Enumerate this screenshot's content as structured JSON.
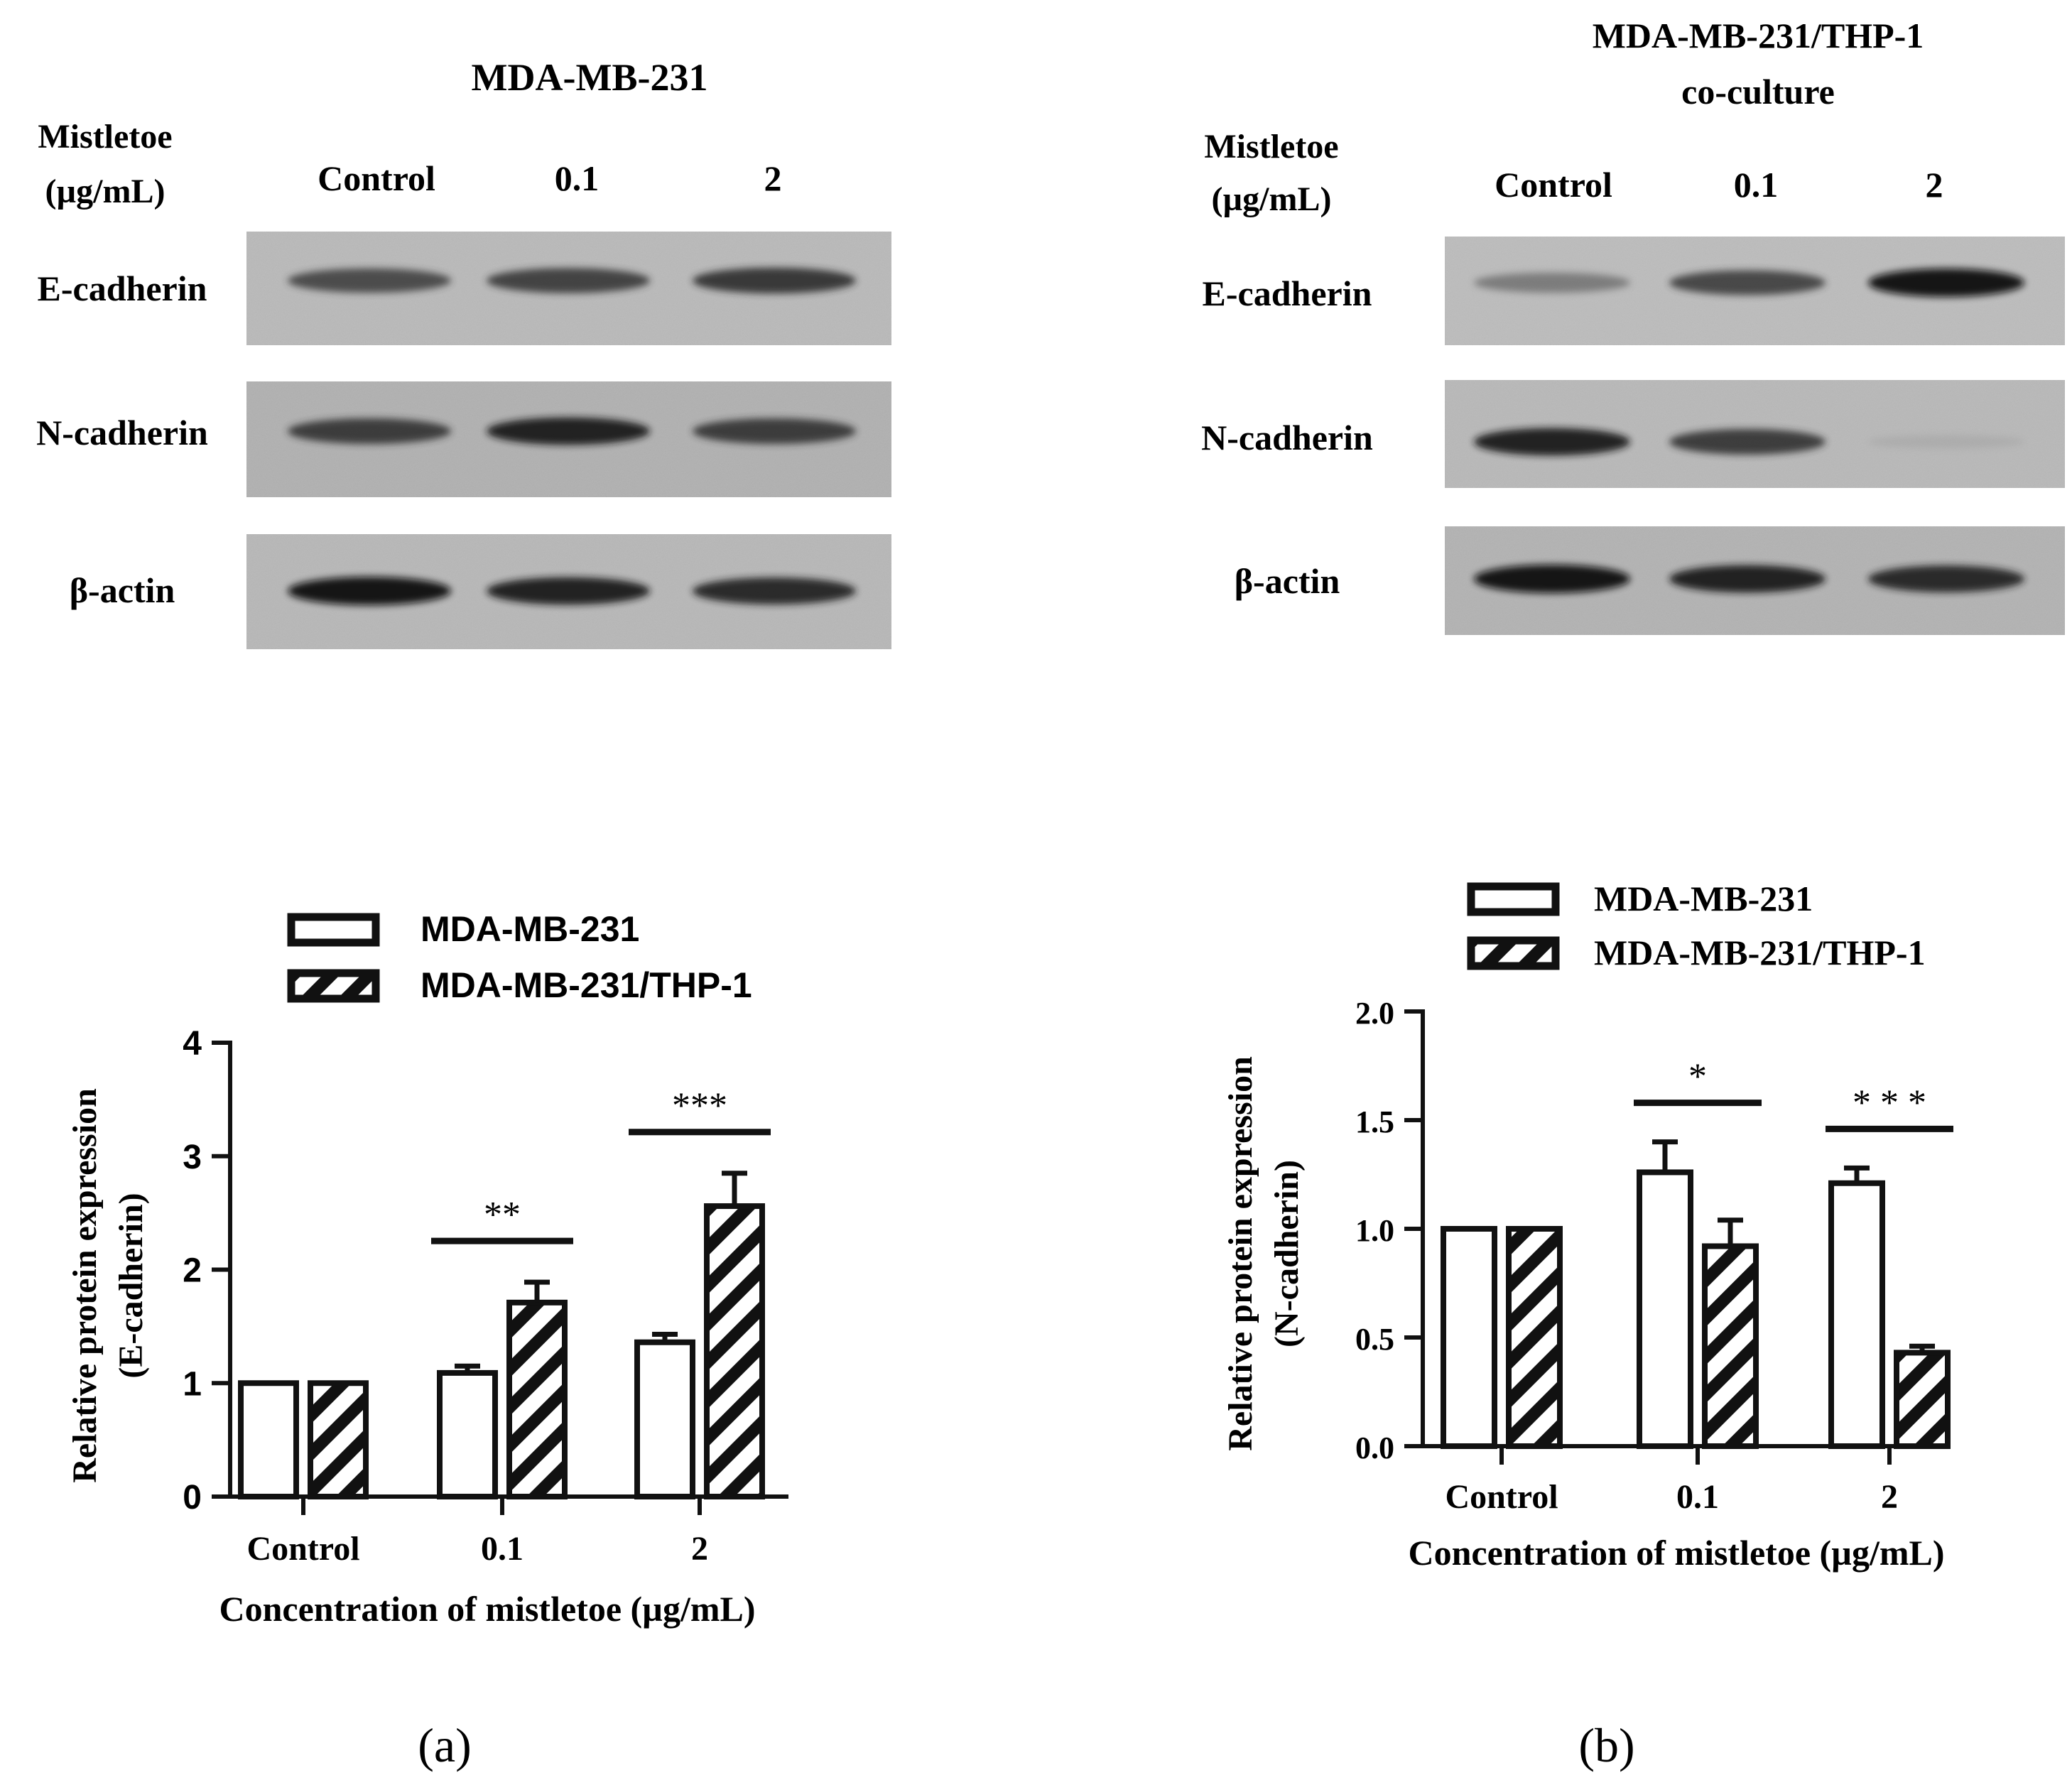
{
  "blots": [
    {
      "title_lines": [
        "MDA-MB-231"
      ],
      "conc_label_lines": [
        "Mistletoe",
        "(µg/mL)"
      ],
      "lanes": [
        "Control",
        "0.1",
        "2"
      ],
      "rows": [
        {
          "label": "E-cadherin",
          "intensity": [
            0.78,
            0.82,
            0.86
          ]
        },
        {
          "label": "N-cadherin",
          "intensity": [
            0.85,
            0.95,
            0.85
          ]
        },
        {
          "label": "β-actin",
          "intensity": [
            1.0,
            0.95,
            0.92
          ]
        }
      ]
    },
    {
      "title_lines": [
        "MDA-MB-231/THP-1",
        "co-culture"
      ],
      "conc_label_lines": [
        "Mistletoe",
        "(µg/mL)"
      ],
      "lanes": [
        "Control",
        "0.1",
        "2"
      ],
      "rows": [
        {
          "label": "E-cadherin",
          "intensity": [
            0.55,
            0.8,
            1.0
          ]
        },
        {
          "label": "N-cadherin",
          "intensity": [
            0.95,
            0.85,
            0.18
          ]
        },
        {
          "label": "β-actin",
          "intensity": [
            1.0,
            0.95,
            0.92
          ]
        }
      ]
    }
  ],
  "chart_data": [
    {
      "type": "bar",
      "categories": [
        "Control",
        "0.1",
        "2"
      ],
      "series": [
        {
          "name": "MDA-MB-231",
          "pattern": "open",
          "values": [
            1.0,
            1.09,
            1.36
          ],
          "errors": [
            0.0,
            0.06,
            0.07
          ]
        },
        {
          "name": "MDA-MB-231/THP-1",
          "pattern": "hatched",
          "values": [
            1.0,
            1.71,
            2.56
          ],
          "errors": [
            0.0,
            0.18,
            0.29
          ]
        }
      ],
      "significance": [
        {
          "category": "0.1",
          "label": "**"
        },
        {
          "category": "2",
          "label": "***"
        }
      ],
      "ylabel_lines": [
        "Relative protein expression",
        "(E-cadherin)"
      ],
      "xlabel": "Concentration of mistletoe (µg/mL)",
      "ylim": [
        0,
        4
      ],
      "yticks": [
        "0",
        "1",
        "2",
        "3",
        "4"
      ],
      "legend": "top",
      "grid": false,
      "panel_label": "(a)"
    },
    {
      "type": "bar",
      "categories": [
        "Control",
        "0.1",
        "2"
      ],
      "series": [
        {
          "name": "MDA-MB-231",
          "pattern": "open",
          "values": [
            1.0,
            1.26,
            1.21
          ],
          "errors": [
            0.0,
            0.14,
            0.07
          ]
        },
        {
          "name": "MDA-MB-231/THP-1",
          "pattern": "hatched",
          "values": [
            1.0,
            0.92,
            0.43
          ],
          "errors": [
            0.0,
            0.12,
            0.03
          ]
        }
      ],
      "significance": [
        {
          "category": "0.1",
          "label": "*"
        },
        {
          "category": "2",
          "label": "* * *"
        }
      ],
      "ylabel_lines": [
        "Relative protein expression",
        "(N-cadherin)"
      ],
      "xlabel": "Concentration of mistletoe (µg/mL)",
      "ylim": [
        0,
        2
      ],
      "yticks": [
        "0.0",
        "0.5",
        "1.0",
        "1.5",
        "2.0"
      ],
      "legend": "top",
      "grid": false,
      "panel_label": "(b)"
    }
  ]
}
